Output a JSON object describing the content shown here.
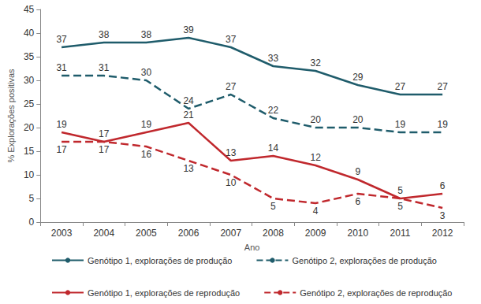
{
  "chart_data": {
    "type": "line",
    "x_label": "Ano",
    "y_label": "% Explorações positivas",
    "categories": [
      "2003",
      "2004",
      "2005",
      "2006",
      "2007",
      "2008",
      "2009",
      "2010",
      "2011",
      "2012"
    ],
    "series": [
      {
        "name": "Genótipo 1, explorações de produção",
        "color": "#1f5c6b",
        "line_style": "solid",
        "values": [
          37,
          38,
          38,
          39,
          37,
          33,
          32,
          29,
          27,
          27
        ]
      },
      {
        "name": "Genótipo 2, explorações de produção",
        "color": "#1f5c6b",
        "line_style": "dashed",
        "values": [
          31,
          31,
          30,
          24,
          27,
          22,
          20,
          20,
          19,
          19
        ]
      },
      {
        "name": "Genótipo 1, explorações de reprodução",
        "color": "#c0282d",
        "line_style": "solid",
        "values": [
          19,
          17,
          19,
          21,
          13,
          14,
          12,
          9,
          5,
          6
        ]
      },
      {
        "name": "Genótipo 2, explorações de reprodução",
        "color": "#c0282d",
        "line_style": "dashed",
        "values": [
          17,
          17,
          16,
          13,
          10,
          5,
          4,
          6,
          5,
          3
        ]
      }
    ],
    "ylim": [
      0,
      45
    ],
    "yticks": [
      0,
      5,
      10,
      15,
      20,
      25,
      30,
      35,
      40,
      45
    ],
    "grid": false,
    "legend": "bottom",
    "data_labels": true
  }
}
